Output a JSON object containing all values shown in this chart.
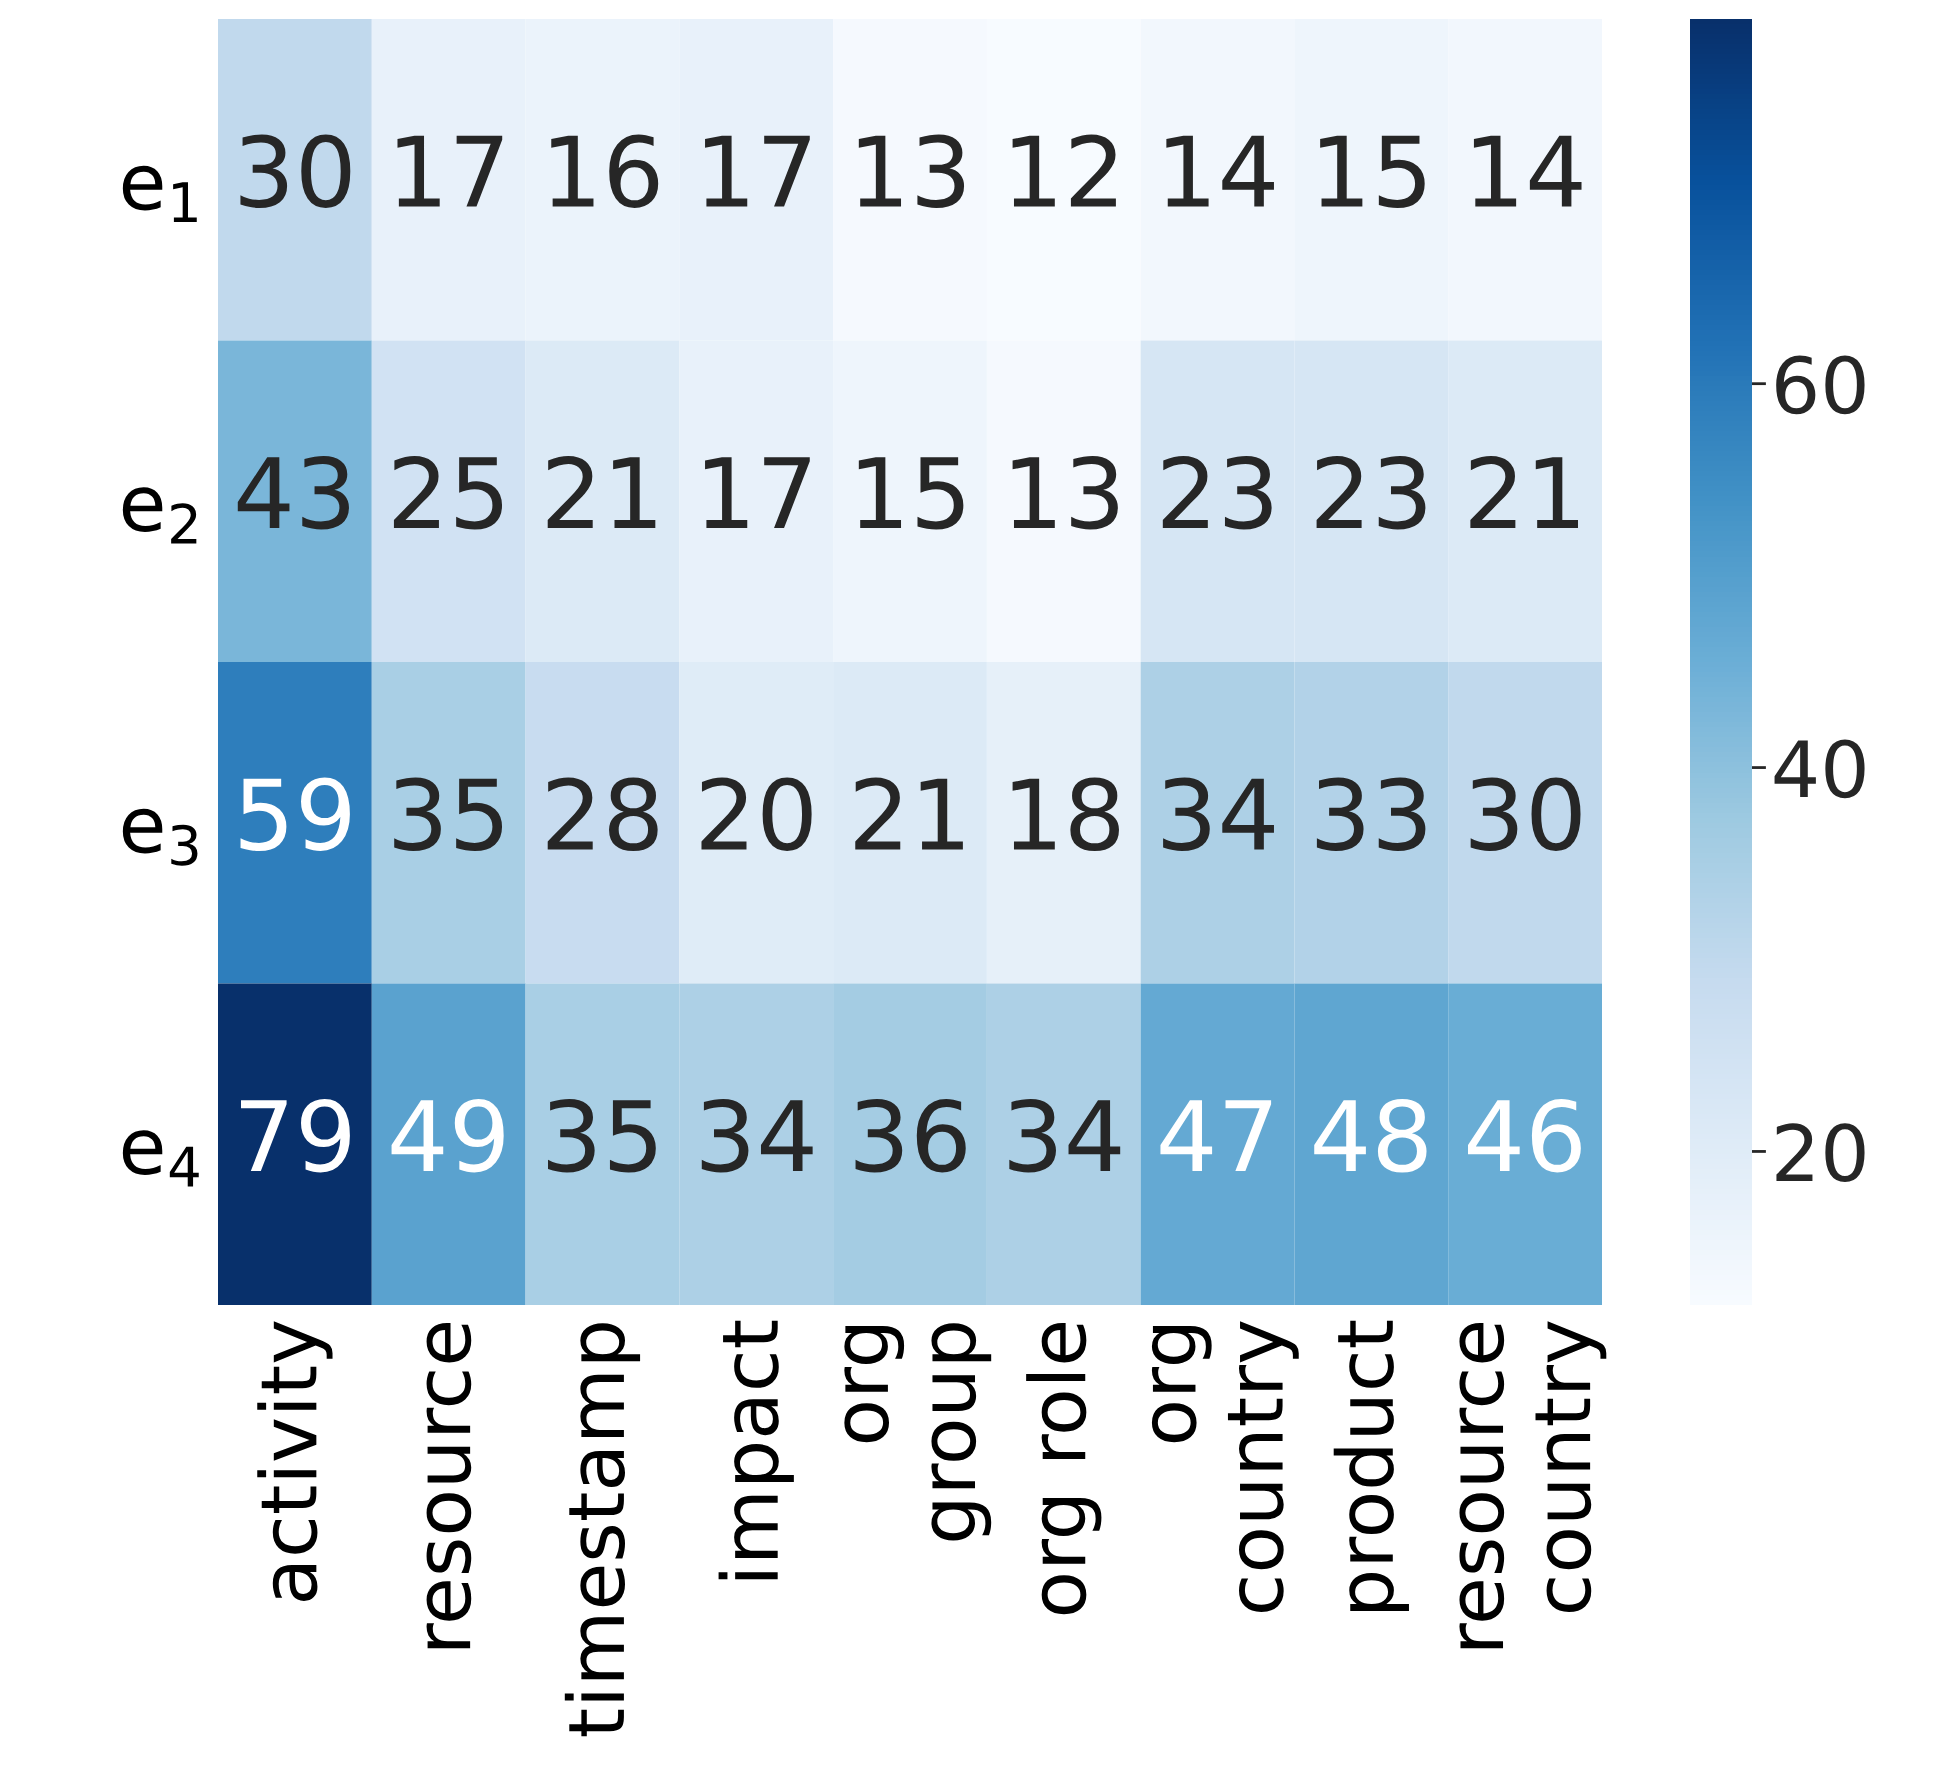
{
  "chart_data": {
    "type": "heatmap",
    "categories": [
      "activity",
      "resource",
      "timestamp",
      "impact",
      "org\ngroup",
      "org role",
      "org\ncountry",
      "product",
      "resource\ncountry"
    ],
    "y_categories": [
      "e$_{1}$",
      "e$_{2}$",
      "e$_{3}$",
      "e$_{4}$"
    ],
    "cells": [
      [
        30,
        17,
        16,
        17,
        13,
        12,
        14,
        15,
        14
      ],
      [
        43,
        25,
        21,
        17,
        15,
        13,
        23,
        23,
        21
      ],
      [
        59,
        35,
        28,
        20,
        21,
        18,
        34,
        33,
        30
      ],
      [
        79,
        49,
        35,
        34,
        36,
        34,
        47,
        48,
        46
      ]
    ],
    "data_labels": true,
    "clim": [
      12,
      79
    ],
    "cticks": [
      20,
      40,
      60
    ]
  }
}
